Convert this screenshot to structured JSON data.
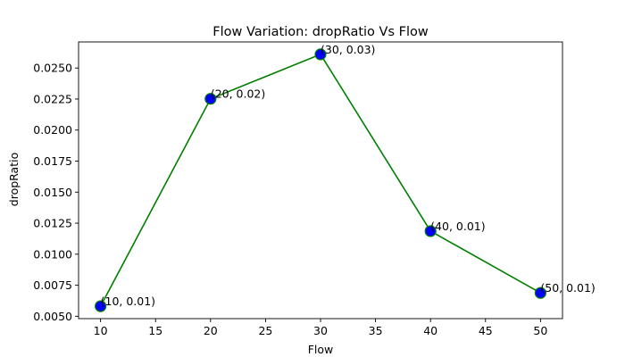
{
  "chart_data": {
    "type": "line",
    "title": "Flow Variation: dropRatio Vs Flow",
    "xlabel": "Flow",
    "ylabel": "dropRatio",
    "x": [
      10,
      20,
      30,
      40,
      50
    ],
    "series": [
      {
        "values": [
          0.00581,
          0.02252,
          0.0261,
          0.01186,
          0.00688
        ],
        "line_color": "#008000",
        "marker_color": "#0000ff",
        "marker_edge_color": "#008000"
      }
    ],
    "data_labels": [
      "(10, 0.01)",
      "(20, 0.02)",
      "(30, 0.03)",
      "(40, 0.01)",
      "(50, 0.01)"
    ],
    "xlim": [
      8,
      52
    ],
    "ylim": [
      0.00481,
      0.0271
    ],
    "xticks": [
      10,
      15,
      20,
      25,
      30,
      35,
      40,
      45,
      50
    ],
    "xtick_labels": [
      "10",
      "15",
      "20",
      "25",
      "30",
      "35",
      "40",
      "45",
      "50"
    ],
    "yticks": [
      0.005,
      0.0075,
      0.01,
      0.0125,
      0.015,
      0.0175,
      0.02,
      0.0225,
      0.025
    ],
    "ytick_labels": [
      "0.0050",
      "0.0075",
      "0.0100",
      "0.0125",
      "0.0150",
      "0.0175",
      "0.0200",
      "0.0225",
      "0.0250"
    ],
    "grid": false,
    "legend": false
  }
}
